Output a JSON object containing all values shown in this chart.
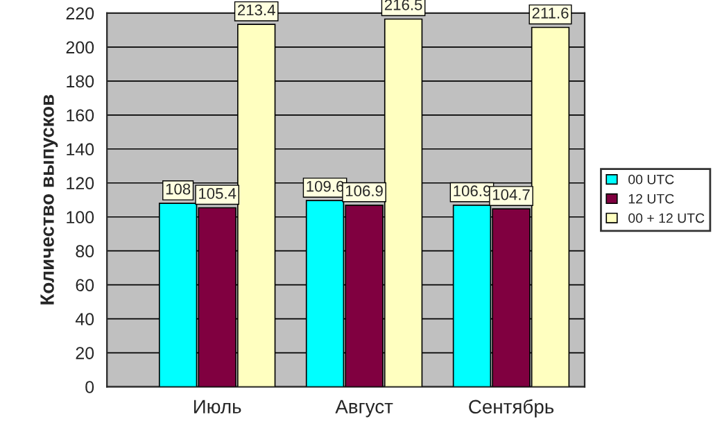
{
  "chart_data": {
    "type": "bar",
    "ylabel": "Количество выпусков",
    "categories": [
      "Июль",
      "Август",
      "Сентябрь"
    ],
    "series": [
      {
        "name": "00 UTC",
        "color": "#00ffff",
        "values": [
          108,
          109.6,
          106.9
        ]
      },
      {
        "name": "12 UTC",
        "color": "#800040",
        "values": [
          105.4,
          106.9,
          104.7
        ]
      },
      {
        "name": "00 + 12 UTC",
        "color": "#ffffc0",
        "values": [
          213.4,
          216.5,
          211.6
        ]
      }
    ],
    "ylim": [
      0,
      220
    ],
    "yticks": [
      0,
      20,
      40,
      60,
      80,
      100,
      120,
      140,
      160,
      180,
      200,
      220
    ],
    "grid": "y",
    "legend": "right",
    "data_labels": true
  }
}
